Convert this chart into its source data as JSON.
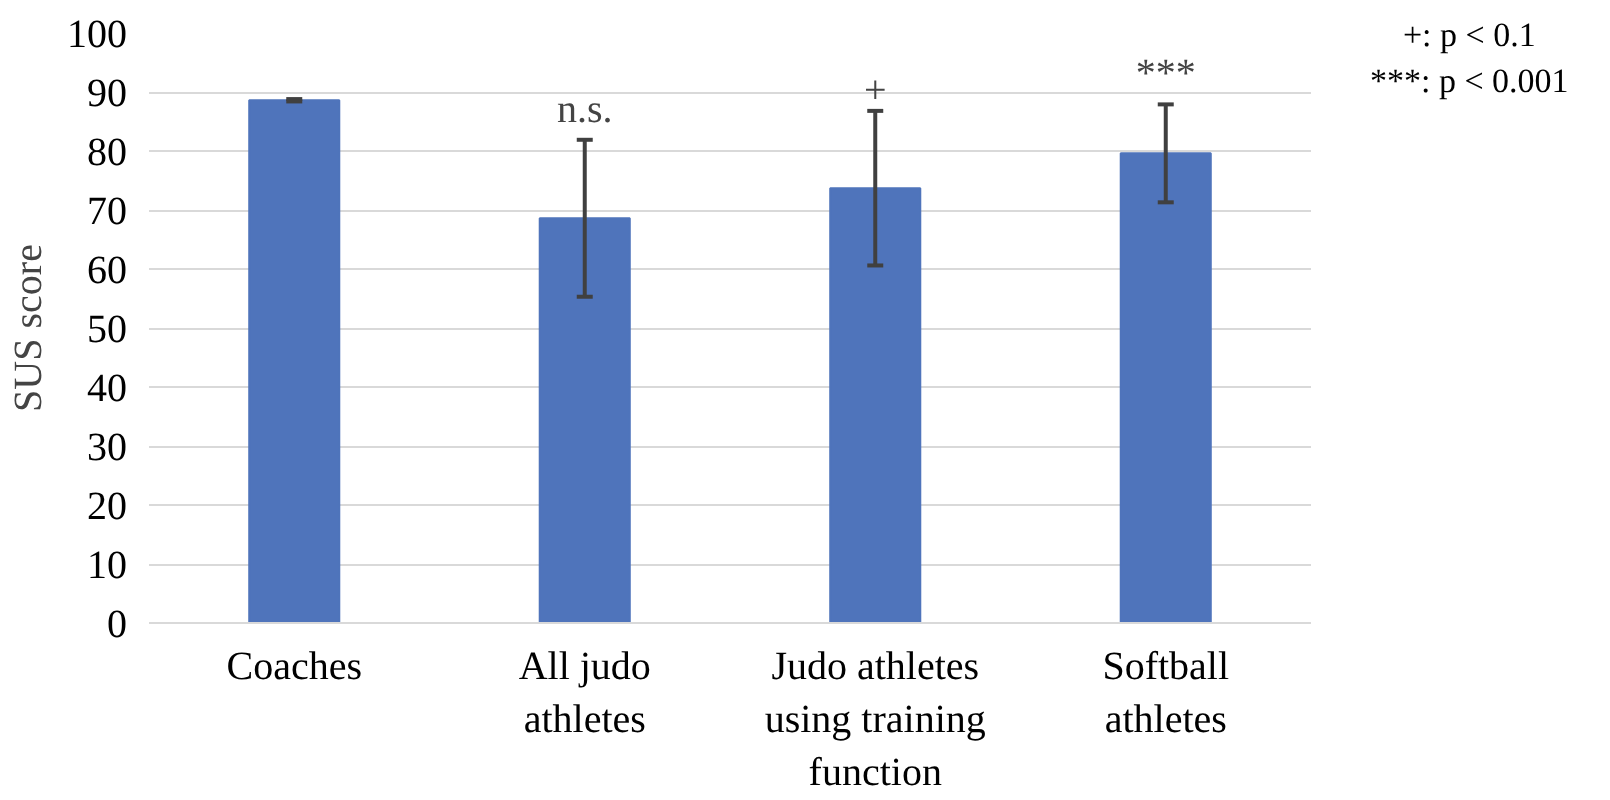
{
  "chart_data": {
    "type": "bar",
    "ylabel": "SUS score",
    "categories": [
      "Coaches",
      "All judo athletes",
      "Judo athletes using training function",
      "Softball athletes"
    ],
    "values": [
      88.6,
      68.6,
      73.7,
      79.6
    ],
    "errors": [
      0.2,
      13.3,
      13.1,
      8.3
    ],
    "color": "#4f74bb",
    "ylim": [
      0,
      100
    ],
    "yticks": [
      0,
      10,
      20,
      30,
      40,
      50,
      60,
      70,
      80,
      90,
      100
    ],
    "grid": "y",
    "annotations": [
      "n.s.",
      "+",
      "***",
      "+: p < 0.1",
      "***: p < 0.001"
    ]
  }
}
